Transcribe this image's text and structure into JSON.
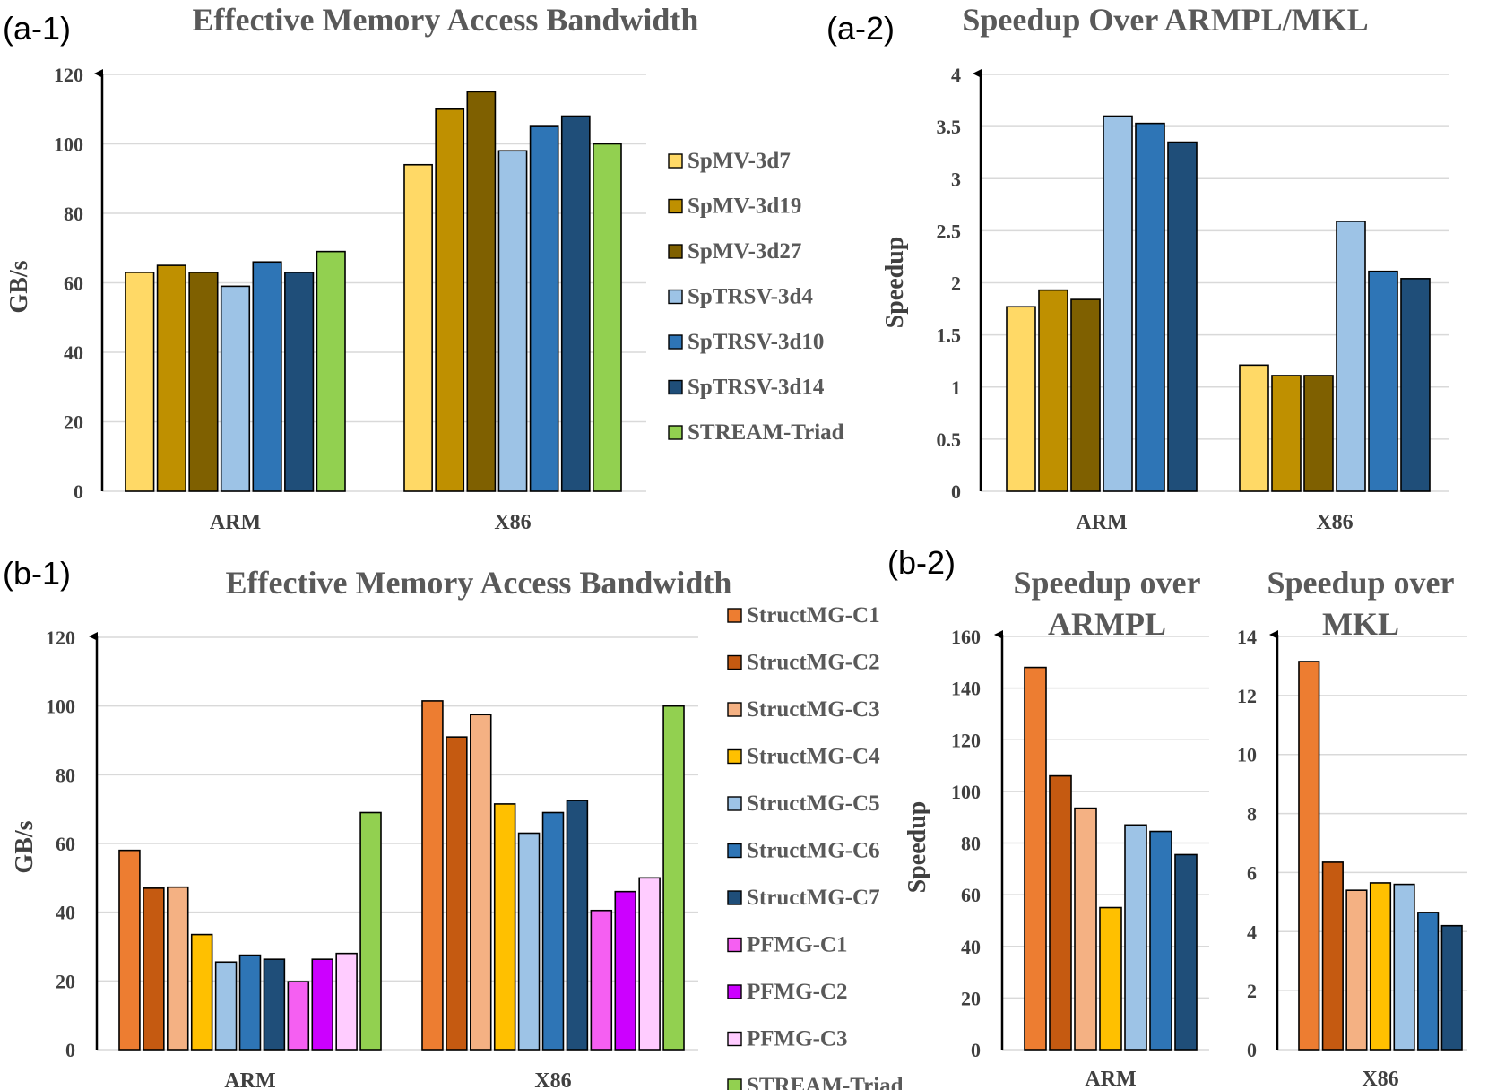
{
  "panels": {
    "a1": "(a-1)",
    "a2": "(a-2)",
    "b1": "(b-1)",
    "b2": "(b-2)"
  },
  "colors": {
    "SpMV-3d7": "#FFD966",
    "SpMV-3d19": "#BF9000",
    "SpMV-3d27": "#7F6000",
    "SpTRSV-3d4": "#9DC3E6",
    "SpTRSV-3d10": "#2E75B6",
    "SpTRSV-3d14": "#1F4E79",
    "STREAM-Triad": "#92D050",
    "StructMG-C1": "#ED7D31",
    "StructMG-C2": "#C55A11",
    "StructMG-C3": "#F4B183",
    "StructMG-C4": "#FFC000",
    "StructMG-C5": "#9DC3E6",
    "StructMG-C6": "#2E75B6",
    "StructMG-C7": "#1F4E79",
    "PFMG-C1": "#F55FF2",
    "PFMG-C2": "#CC00FF",
    "PFMG-C3": "#FFCCFF"
  },
  "chart_data": [
    {
      "id": "a1",
      "type": "bar",
      "title": "Effective Memory Access Bandwidth",
      "xlabel": "",
      "ylabel": "GB/s",
      "ylim": [
        0,
        120
      ],
      "yticks": [
        0,
        20,
        40,
        60,
        80,
        100,
        120
      ],
      "categories": [
        "ARM",
        "X86"
      ],
      "legend": "right",
      "series": [
        {
          "name": "SpMV-3d7",
          "values": [
            63,
            94
          ]
        },
        {
          "name": "SpMV-3d19",
          "values": [
            65,
            110
          ]
        },
        {
          "name": "SpMV-3d27",
          "values": [
            63,
            115
          ]
        },
        {
          "name": "SpTRSV-3d4",
          "values": [
            59,
            98
          ]
        },
        {
          "name": "SpTRSV-3d10",
          "values": [
            66,
            105
          ]
        },
        {
          "name": "SpTRSV-3d14",
          "values": [
            63,
            108
          ]
        },
        {
          "name": "STREAM-Triad",
          "values": [
            69,
            100
          ]
        }
      ]
    },
    {
      "id": "a2",
      "type": "bar",
      "title": "Speedup Over ARMPL/MKL",
      "xlabel": "",
      "ylabel": "Speedup",
      "ylim": [
        0,
        4
      ],
      "yticks": [
        0,
        0.5,
        1,
        1.5,
        2,
        2.5,
        3,
        3.5,
        4
      ],
      "categories": [
        "ARM",
        "X86"
      ],
      "series": [
        {
          "name": "SpMV-3d7",
          "values": [
            1.77,
            1.21
          ]
        },
        {
          "name": "SpMV-3d19",
          "values": [
            1.93,
            1.11
          ]
        },
        {
          "name": "SpMV-3d27",
          "values": [
            1.84,
            1.11
          ]
        },
        {
          "name": "SpTRSV-3d4",
          "values": [
            3.6,
            2.59
          ]
        },
        {
          "name": "SpTRSV-3d10",
          "values": [
            3.53,
            2.11
          ]
        },
        {
          "name": "SpTRSV-3d14",
          "values": [
            3.35,
            2.04
          ]
        }
      ]
    },
    {
      "id": "b1",
      "type": "bar",
      "title": "Effective Memory Access Bandwidth",
      "xlabel": "",
      "ylabel": "GB/s",
      "ylim": [
        0,
        120
      ],
      "yticks": [
        0,
        20,
        40,
        60,
        80,
        100,
        120
      ],
      "categories": [
        "ARM",
        "X86"
      ],
      "legend": "right",
      "series": [
        {
          "name": "StructMG-C1",
          "values": [
            58,
            101.5
          ]
        },
        {
          "name": "StructMG-C2",
          "values": [
            47,
            91
          ]
        },
        {
          "name": "StructMG-C3",
          "values": [
            47.3,
            97.5
          ]
        },
        {
          "name": "StructMG-C4",
          "values": [
            33.5,
            71.5
          ]
        },
        {
          "name": "StructMG-C5",
          "values": [
            25.5,
            63
          ]
        },
        {
          "name": "StructMG-C6",
          "values": [
            27.5,
            69
          ]
        },
        {
          "name": "StructMG-C7",
          "values": [
            26.3,
            72.5
          ]
        },
        {
          "name": "PFMG-C1",
          "values": [
            19.8,
            40.5
          ]
        },
        {
          "name": "PFMG-C2",
          "values": [
            26.3,
            46
          ]
        },
        {
          "name": "PFMG-C3",
          "values": [
            28,
            50
          ]
        },
        {
          "name": "STREAM-Triad",
          "values": [
            69,
            100
          ]
        }
      ]
    },
    {
      "id": "b2-armpl",
      "type": "bar",
      "title": "Speedup over ARMPL",
      "xlabel": "",
      "ylabel": "Speedup",
      "ylim": [
        0,
        160
      ],
      "yticks": [
        0,
        20,
        40,
        60,
        80,
        100,
        120,
        140,
        160
      ],
      "categories": [
        "ARM"
      ],
      "series": [
        {
          "name": "StructMG-C1",
          "values": [
            148
          ]
        },
        {
          "name": "StructMG-C2",
          "values": [
            106
          ]
        },
        {
          "name": "StructMG-C3",
          "values": [
            93.5
          ]
        },
        {
          "name": "StructMG-C4",
          "values": [
            55
          ]
        },
        {
          "name": "StructMG-C5",
          "values": [
            87
          ]
        },
        {
          "name": "StructMG-C6",
          "values": [
            84.5
          ]
        },
        {
          "name": "StructMG-C7",
          "values": [
            75.5
          ]
        }
      ]
    },
    {
      "id": "b2-mkl",
      "type": "bar",
      "title": "Speedup over MKL",
      "xlabel": "",
      "ylabel": "",
      "ylim": [
        0,
        14
      ],
      "yticks": [
        0,
        2,
        4,
        6,
        8,
        10,
        12,
        14
      ],
      "categories": [
        "X86"
      ],
      "series": [
        {
          "name": "StructMG-C1",
          "values": [
            13.15
          ]
        },
        {
          "name": "StructMG-C2",
          "values": [
            6.35
          ]
        },
        {
          "name": "StructMG-C3",
          "values": [
            5.4
          ]
        },
        {
          "name": "StructMG-C4",
          "values": [
            5.65
          ]
        },
        {
          "name": "StructMG-C5",
          "values": [
            5.6
          ]
        },
        {
          "name": "StructMG-C6",
          "values": [
            4.65
          ]
        },
        {
          "name": "StructMG-C7",
          "values": [
            4.2
          ]
        }
      ]
    }
  ]
}
